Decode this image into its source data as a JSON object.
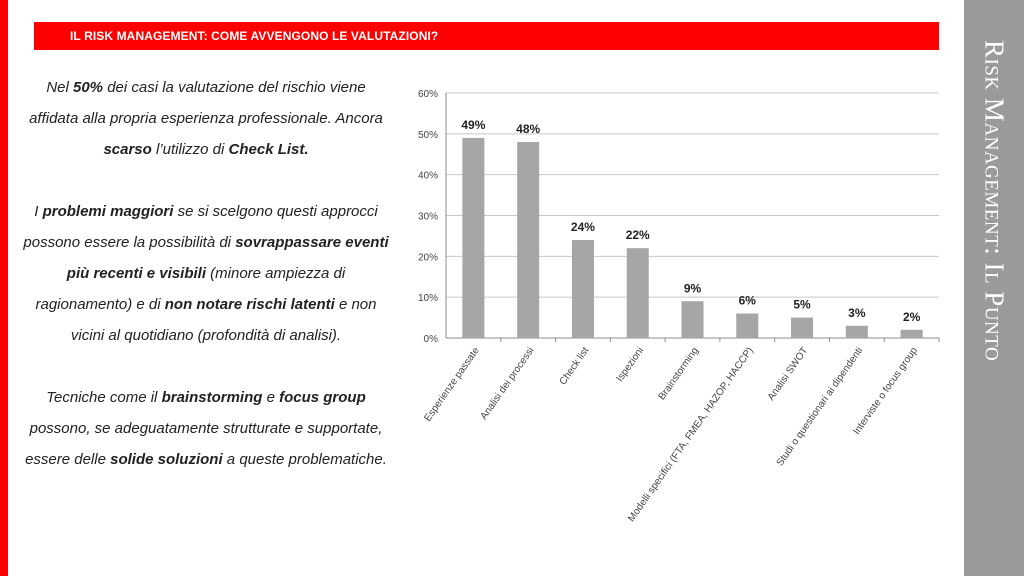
{
  "header": {
    "title": "IL RISK MANAGEMENT: COME AVVENGONO LE VALUTAZIONI?"
  },
  "side_title": "Risk Management: Il Punto",
  "body_text": {
    "p1": [
      "Nel ",
      "50%",
      " dei casi la valutazione del rischio viene affidata alla propria esperienza professionale. Ancora ",
      "scarso",
      " l’utilizzo di ",
      "Check List."
    ],
    "p2": [
      "I ",
      "problemi maggiori",
      " se si scelgono questi approcci possono essere la possibilità di ",
      "sovrappassare eventi più recenti e visibili",
      " (minore ampiezza di ragionamento) e di ",
      "non notare rischi latenti",
      " e non vicini al quotidiano (profondità di analisi)."
    ],
    "p3": [
      "Tecniche come il ",
      "brainstorming",
      " e ",
      "focus group",
      " possono, se adeguatamente strutturate e supportate, essere delle ",
      "solide soluzioni",
      " a queste problematiche."
    ]
  },
  "colors": {
    "accent": "#ff0000",
    "bar": "#a6a6a6",
    "side_panel": "#9a9a9a"
  },
  "chart_data": {
    "type": "bar",
    "categories": [
      "Esperienze passate",
      "Analisi dei processi",
      "Check list",
      "Ispezioni",
      "Brainstorming",
      "Modelli specifici (FTA, FMEA, HAZOP, HACCP)",
      "Analisi SWOT",
      "Studi o questionari ai dipendenti",
      "Interviste o focus group"
    ],
    "values": [
      49,
      48,
      24,
      22,
      9,
      6,
      5,
      3,
      2
    ],
    "data_labels": [
      "49%",
      "48%",
      "24%",
      "22%",
      "9%",
      "6%",
      "5%",
      "3%",
      "2%"
    ],
    "yticks": [
      "0%",
      "10%",
      "20%",
      "30%",
      "40%",
      "50%",
      "60%"
    ],
    "ylim": [
      0,
      60
    ],
    "grid": true
  }
}
